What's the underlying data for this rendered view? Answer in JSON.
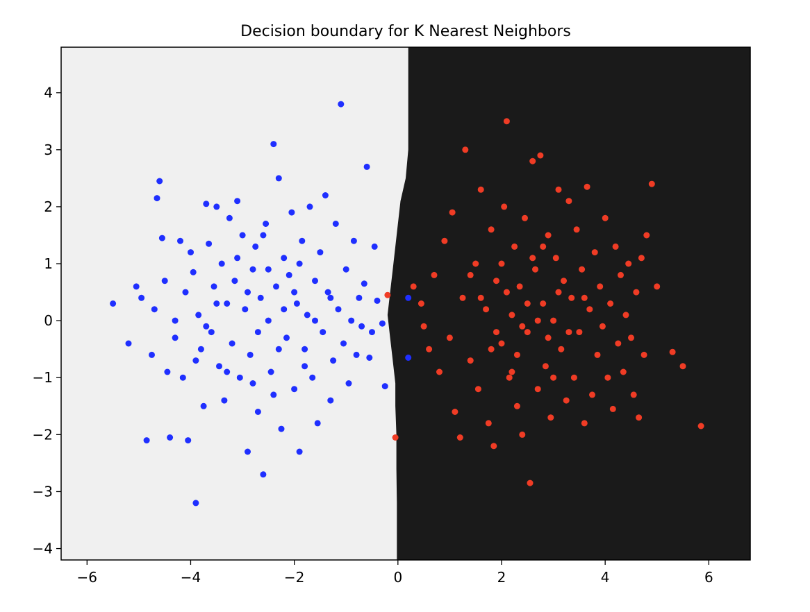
{
  "chart_data": {
    "type": "scatter",
    "title": "Decision boundary for K Nearest Neighbors",
    "xlabel": "",
    "ylabel": "",
    "xlim": [
      -6.5,
      6.8
    ],
    "ylim": [
      -4.2,
      4.8
    ],
    "xticks": [
      -6,
      -4,
      -2,
      0,
      2,
      4,
      6
    ],
    "yticks": [
      -4,
      -3,
      -2,
      -1,
      0,
      1,
      2,
      3,
      4
    ],
    "xtick_labels": [
      "−6",
      "−4",
      "−2",
      "0",
      "2",
      "4",
      "6"
    ],
    "ytick_labels": [
      "−4",
      "−3",
      "−2",
      "−1",
      "0",
      "1",
      "2",
      "3",
      "4"
    ],
    "grid": false,
    "legend": "none",
    "background_regions": {
      "left_color": "#f0f0f0",
      "right_color": "#1a1a1a",
      "boundary": [
        [
          0.2,
          4.8
        ],
        [
          0.2,
          3.0
        ],
        [
          0.15,
          2.5
        ],
        [
          0.05,
          2.1
        ],
        [
          0.0,
          1.7
        ],
        [
          -0.05,
          1.3
        ],
        [
          -0.1,
          0.9
        ],
        [
          -0.15,
          0.5
        ],
        [
          -0.2,
          0.1
        ],
        [
          -0.15,
          -0.3
        ],
        [
          -0.1,
          -0.7
        ],
        [
          -0.05,
          -1.1
        ],
        [
          -0.05,
          -1.5
        ],
        [
          -0.03,
          -2.0
        ],
        [
          -0.03,
          -2.6
        ],
        [
          -0.02,
          -3.2
        ],
        [
          -0.02,
          -4.2
        ]
      ]
    },
    "series": [
      {
        "color": "#1f2fff",
        "points": [
          [
            -5.5,
            0.3
          ],
          [
            -5.2,
            -0.4
          ],
          [
            -5.05,
            0.6
          ],
          [
            -4.95,
            0.4
          ],
          [
            -4.85,
            -2.1
          ],
          [
            -4.75,
            -0.6
          ],
          [
            -4.7,
            0.2
          ],
          [
            -4.65,
            2.15
          ],
          [
            -4.6,
            2.45
          ],
          [
            -4.55,
            1.45
          ],
          [
            -4.5,
            0.7
          ],
          [
            -4.45,
            -0.9
          ],
          [
            -4.4,
            -2.05
          ],
          [
            -4.3,
            -0.3
          ],
          [
            -4.2,
            1.4
          ],
          [
            -4.15,
            -1.0
          ],
          [
            -4.1,
            0.5
          ],
          [
            -4.05,
            -2.1
          ],
          [
            -4.0,
            1.2
          ],
          [
            -3.95,
            0.85
          ],
          [
            -3.9,
            -3.2
          ],
          [
            -3.85,
            0.1
          ],
          [
            -3.8,
            -0.5
          ],
          [
            -3.75,
            -1.5
          ],
          [
            -3.7,
            2.05
          ],
          [
            -3.65,
            1.35
          ],
          [
            -3.6,
            -0.2
          ],
          [
            -3.55,
            0.6
          ],
          [
            -3.5,
            2.0
          ],
          [
            -3.45,
            -0.8
          ],
          [
            -3.4,
            1.0
          ],
          [
            -3.35,
            -1.4
          ],
          [
            -3.3,
            0.3
          ],
          [
            -3.25,
            1.8
          ],
          [
            -3.2,
            -0.4
          ],
          [
            -3.15,
            0.7
          ],
          [
            -3.1,
            2.1
          ],
          [
            -3.05,
            -1.0
          ],
          [
            -3.0,
            1.5
          ],
          [
            -2.95,
            0.2
          ],
          [
            -2.9,
            -2.3
          ],
          [
            -2.85,
            -0.6
          ],
          [
            -2.8,
            0.9
          ],
          [
            -2.75,
            1.3
          ],
          [
            -2.7,
            -1.6
          ],
          [
            -2.65,
            0.4
          ],
          [
            -2.6,
            -2.7
          ],
          [
            -2.55,
            1.7
          ],
          [
            -2.5,
            0.0
          ],
          [
            -2.45,
            -0.9
          ],
          [
            -2.4,
            3.1
          ],
          [
            -2.35,
            0.6
          ],
          [
            -2.3,
            2.5
          ],
          [
            -2.25,
            -1.9
          ],
          [
            -2.2,
            1.1
          ],
          [
            -2.15,
            -0.3
          ],
          [
            -2.1,
            0.8
          ],
          [
            -2.05,
            1.9
          ],
          [
            -2.0,
            -1.2
          ],
          [
            -1.95,
            0.3
          ],
          [
            -1.9,
            -2.3
          ],
          [
            -1.85,
            1.4
          ],
          [
            -1.8,
            -0.5
          ],
          [
            -1.75,
            0.1
          ],
          [
            -1.7,
            2.0
          ],
          [
            -1.65,
            -1.0
          ],
          [
            -1.6,
            0.7
          ],
          [
            -1.55,
            -1.8
          ],
          [
            -1.5,
            1.2
          ],
          [
            -1.45,
            -0.2
          ],
          [
            -1.4,
            2.2
          ],
          [
            -1.35,
            0.5
          ],
          [
            -1.3,
            -1.4
          ],
          [
            -1.25,
            -0.7
          ],
          [
            -1.2,
            1.7
          ],
          [
            -1.15,
            0.2
          ],
          [
            -1.1,
            3.8
          ],
          [
            -1.05,
            -0.4
          ],
          [
            -1.0,
            0.9
          ],
          [
            -0.95,
            -1.1
          ],
          [
            -0.9,
            0.0
          ],
          [
            -0.85,
            1.4
          ],
          [
            -0.8,
            -0.6
          ],
          [
            -0.75,
            0.4
          ],
          [
            -0.7,
            -0.1
          ],
          [
            -0.65,
            0.65
          ],
          [
            -0.6,
            2.7
          ],
          [
            -0.55,
            -0.65
          ],
          [
            -0.5,
            -0.2
          ],
          [
            -0.45,
            1.3
          ],
          [
            -0.4,
            0.35
          ],
          [
            -0.3,
            -0.05
          ],
          [
            -0.25,
            -1.15
          ],
          [
            0.2,
            0.4
          ],
          [
            0.2,
            -0.65
          ],
          [
            -4.3,
            0.0
          ],
          [
            -3.7,
            -0.1
          ],
          [
            -3.3,
            -0.9
          ],
          [
            -2.9,
            0.5
          ],
          [
            -2.7,
            -0.2
          ],
          [
            -2.5,
            0.9
          ],
          [
            -2.3,
            -0.5
          ],
          [
            -2.2,
            0.2
          ],
          [
            -2.0,
            0.5
          ],
          [
            -1.8,
            -0.8
          ],
          [
            -1.6,
            0.0
          ],
          [
            -2.8,
            -1.1
          ],
          [
            -3.1,
            1.1
          ],
          [
            -2.6,
            1.5
          ],
          [
            -2.4,
            -1.3
          ],
          [
            -1.9,
            1.0
          ],
          [
            -3.5,
            0.3
          ],
          [
            -3.9,
            -0.7
          ],
          [
            -1.3,
            0.4
          ]
        ]
      },
      {
        "color": "#f03c25",
        "points": [
          [
            -0.2,
            0.45
          ],
          [
            -0.05,
            -2.05
          ],
          [
            0.3,
            0.6
          ],
          [
            0.45,
            0.3
          ],
          [
            0.5,
            -0.1
          ],
          [
            0.6,
            -0.5
          ],
          [
            0.7,
            0.8
          ],
          [
            0.8,
            -0.9
          ],
          [
            0.9,
            1.4
          ],
          [
            1.0,
            -0.3
          ],
          [
            1.05,
            1.9
          ],
          [
            1.1,
            -1.6
          ],
          [
            1.2,
            -2.05
          ],
          [
            1.25,
            0.4
          ],
          [
            1.3,
            3.0
          ],
          [
            1.4,
            -0.7
          ],
          [
            1.5,
            1.0
          ],
          [
            1.55,
            -1.2
          ],
          [
            1.6,
            2.3
          ],
          [
            1.7,
            0.2
          ],
          [
            1.75,
            -1.8
          ],
          [
            1.8,
            1.6
          ],
          [
            1.85,
            -2.2
          ],
          [
            1.9,
            0.7
          ],
          [
            2.0,
            -0.4
          ],
          [
            2.05,
            2.0
          ],
          [
            2.1,
            3.5
          ],
          [
            2.15,
            -1.0
          ],
          [
            2.2,
            0.1
          ],
          [
            2.25,
            1.3
          ],
          [
            2.3,
            -1.5
          ],
          [
            2.35,
            0.6
          ],
          [
            2.4,
            -2.0
          ],
          [
            2.45,
            1.8
          ],
          [
            2.5,
            -0.2
          ],
          [
            2.55,
            -2.85
          ],
          [
            2.6,
            2.8
          ],
          [
            2.65,
            0.9
          ],
          [
            2.7,
            -1.2
          ],
          [
            2.75,
            2.9
          ],
          [
            2.8,
            0.3
          ],
          [
            2.85,
            -0.8
          ],
          [
            2.9,
            1.5
          ],
          [
            2.95,
            -1.7
          ],
          [
            3.0,
            0.0
          ],
          [
            3.05,
            1.1
          ],
          [
            3.1,
            2.3
          ],
          [
            3.15,
            -0.5
          ],
          [
            3.2,
            0.7
          ],
          [
            3.25,
            -1.4
          ],
          [
            3.3,
            2.1
          ],
          [
            3.35,
            0.4
          ],
          [
            3.4,
            -1.0
          ],
          [
            3.45,
            1.6
          ],
          [
            3.5,
            -0.2
          ],
          [
            3.55,
            0.9
          ],
          [
            3.6,
            -1.8
          ],
          [
            3.65,
            2.35
          ],
          [
            3.7,
            0.2
          ],
          [
            3.75,
            -1.3
          ],
          [
            3.8,
            1.2
          ],
          [
            3.85,
            -0.6
          ],
          [
            3.9,
            0.6
          ],
          [
            3.95,
            -0.1
          ],
          [
            4.0,
            1.8
          ],
          [
            4.05,
            -1.0
          ],
          [
            4.1,
            0.3
          ],
          [
            4.15,
            -1.55
          ],
          [
            4.2,
            1.3
          ],
          [
            4.25,
            -0.4
          ],
          [
            4.3,
            0.8
          ],
          [
            4.35,
            -0.9
          ],
          [
            4.4,
            0.1
          ],
          [
            4.45,
            1.0
          ],
          [
            4.5,
            -0.3
          ],
          [
            4.55,
            -1.3
          ],
          [
            4.6,
            0.5
          ],
          [
            4.65,
            -1.7
          ],
          [
            4.7,
            1.1
          ],
          [
            4.75,
            -0.6
          ],
          [
            4.8,
            1.5
          ],
          [
            4.9,
            2.4
          ],
          [
            5.0,
            0.6
          ],
          [
            5.3,
            -0.55
          ],
          [
            5.5,
            -0.8
          ],
          [
            5.85,
            -1.85
          ],
          [
            1.6,
            0.4
          ],
          [
            1.9,
            -0.2
          ],
          [
            2.1,
            0.5
          ],
          [
            2.3,
            -0.6
          ],
          [
            2.5,
            0.3
          ],
          [
            2.7,
            0.0
          ],
          [
            2.9,
            -0.3
          ],
          [
            3.1,
            0.5
          ],
          [
            3.3,
            -0.2
          ],
          [
            2.2,
            -0.9
          ],
          [
            2.6,
            1.1
          ],
          [
            2.0,
            1.0
          ],
          [
            2.4,
            -0.1
          ],
          [
            1.8,
            -0.5
          ],
          [
            3.0,
            -1.0
          ],
          [
            2.8,
            1.3
          ],
          [
            1.4,
            0.8
          ],
          [
            3.6,
            0.4
          ]
        ]
      }
    ]
  }
}
